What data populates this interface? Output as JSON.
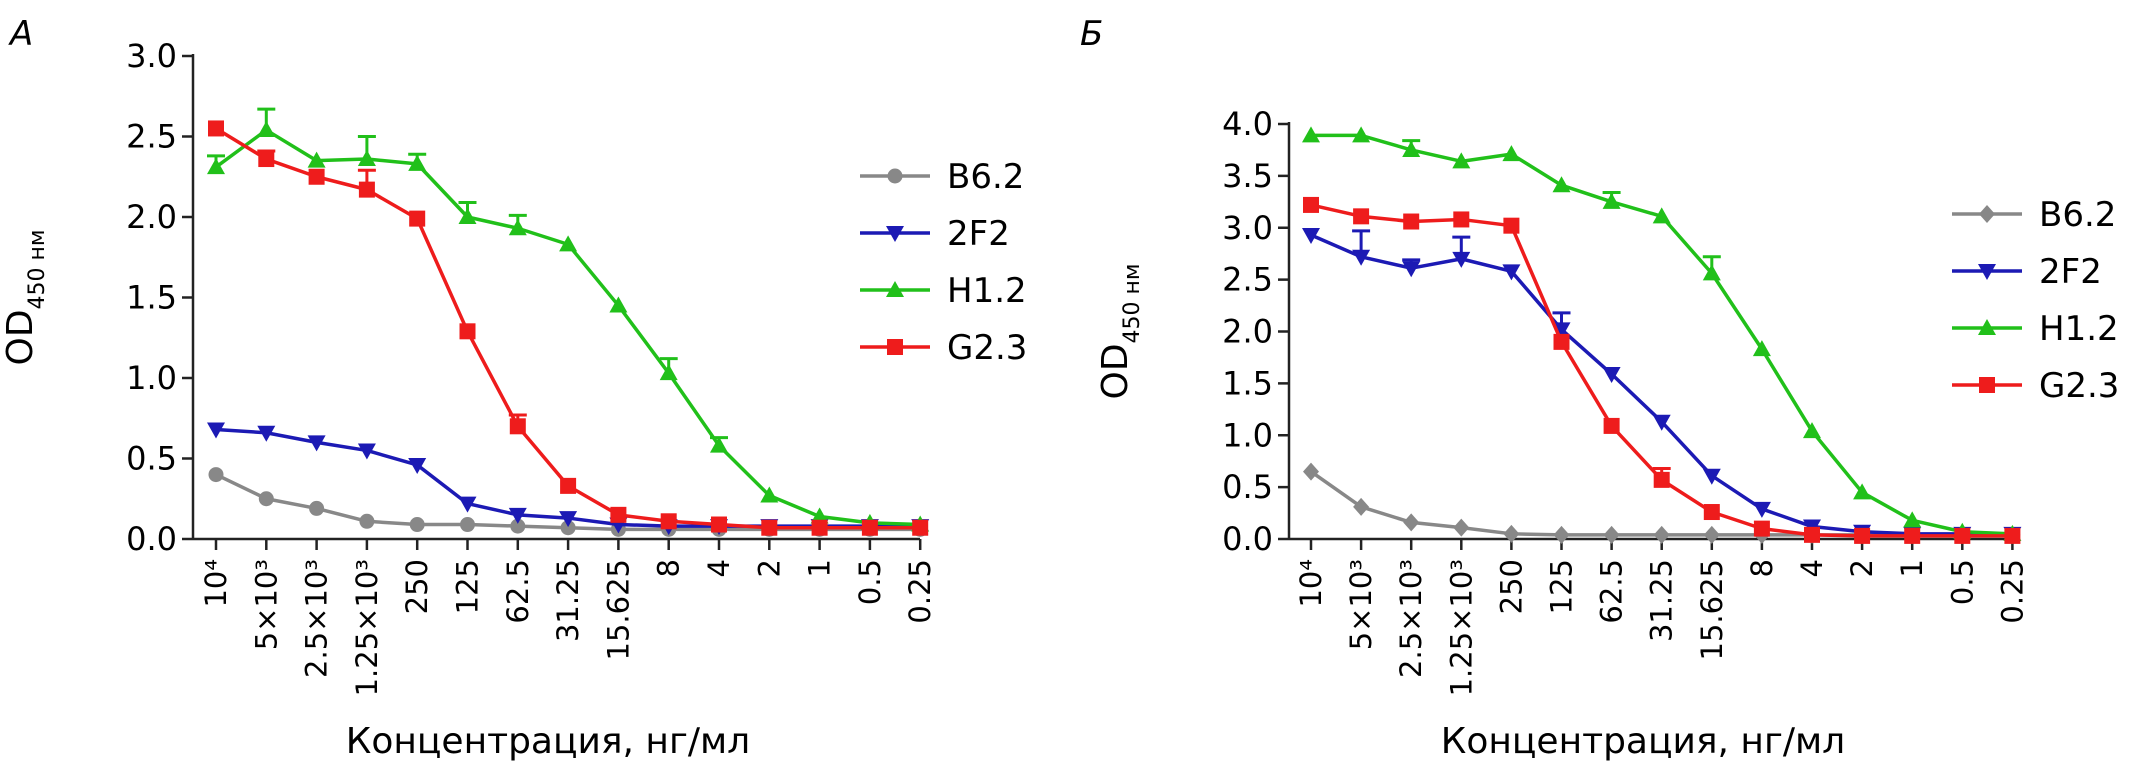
{
  "chart_data": [
    {
      "panel_label": "А",
      "type": "line",
      "categories": [
        "10⁴",
        "5×10³",
        "2.5×10³",
        "1.25×10³",
        "250",
        "125",
        "62.5",
        "31.25",
        "15.625",
        "8",
        "4",
        "2",
        "1",
        "0.5",
        "0.25"
      ],
      "xlabel": "Концентрация, нг/мл",
      "ylabel": "OD",
      "ylabel_sub": "450 нм",
      "ylim": [
        0,
        3.0
      ],
      "yticks": [
        "0.0",
        "0.5",
        "1.0",
        "1.5",
        "2.0",
        "2.5",
        "3.0"
      ],
      "legend_position": "right",
      "series": [
        {
          "name": "B6.2",
          "color": "#888888",
          "marker": "circle",
          "values": [
            0.4,
            0.25,
            0.19,
            0.11,
            0.09,
            0.09,
            0.08,
            0.07,
            0.06,
            0.06,
            0.06,
            0.06,
            0.06,
            0.06,
            0.06
          ],
          "err": [
            0,
            0,
            0,
            0,
            0,
            0,
            0,
            0,
            0,
            0,
            0,
            0,
            0,
            0,
            0
          ]
        },
        {
          "name": "2F2",
          "color": "#1c1ab4",
          "marker": "triangle-down",
          "values": [
            0.68,
            0.66,
            0.6,
            0.55,
            0.46,
            0.22,
            0.15,
            0.13,
            0.09,
            0.08,
            0.08,
            0.08,
            0.08,
            0.08,
            0.08
          ],
          "err": [
            0,
            0,
            0,
            0,
            0,
            0,
            0,
            0,
            0,
            0,
            0,
            0,
            0,
            0,
            0
          ]
        },
        {
          "name": "H1.2",
          "color": "#21c01a",
          "marker": "triangle-up",
          "values": [
            2.31,
            2.54,
            2.35,
            2.36,
            2.33,
            2.0,
            1.93,
            1.83,
            1.45,
            1.03,
            0.58,
            0.27,
            0.14,
            0.1,
            0.09
          ],
          "err": [
            0.07,
            0.13,
            0,
            0.14,
            0.06,
            0.09,
            0.08,
            0,
            0,
            0.09,
            0.05,
            0,
            0,
            0,
            0
          ]
        },
        {
          "name": "G2.3",
          "color": "#ee1c1c",
          "marker": "square",
          "values": [
            2.55,
            2.36,
            2.25,
            2.17,
            1.99,
            1.29,
            0.7,
            0.33,
            0.15,
            0.11,
            0.09,
            0.07,
            0.07,
            0.07,
            0.07
          ],
          "err": [
            0,
            0.05,
            0,
            0.12,
            0,
            0,
            0.07,
            0,
            0,
            0,
            0,
            0,
            0,
            0,
            0
          ]
        }
      ]
    },
    {
      "panel_label": "Б",
      "type": "line",
      "categories": [
        "10⁴",
        "5×10³",
        "2.5×10³",
        "1.25×10³",
        "250",
        "125",
        "62.5",
        "31.25",
        "15.625",
        "8",
        "4",
        "2",
        "1",
        "0.5",
        "0.25"
      ],
      "xlabel": "Концентрация, нг/мл",
      "ylabel": "OD",
      "ylabel_sub": "450 нм",
      "ylim": [
        0,
        4.0
      ],
      "yticks": [
        "0.0",
        "0.5",
        "1.0",
        "1.5",
        "2.0",
        "2.5",
        "3.0",
        "3.5",
        "4.0"
      ],
      "legend_position": "right",
      "series": [
        {
          "name": "B6.2",
          "color": "#888888",
          "marker": "diamond",
          "values": [
            0.65,
            0.31,
            0.16,
            0.11,
            0.05,
            0.04,
            0.04,
            0.04,
            0.04,
            0.04,
            0.04,
            0.04,
            0.04,
            0.04,
            0.04
          ],
          "err": [
            0,
            0,
            0,
            0,
            0,
            0,
            0,
            0,
            0,
            0,
            0,
            0,
            0,
            0,
            0
          ]
        },
        {
          "name": "2F2",
          "color": "#1c1ab4",
          "marker": "triangle-down",
          "values": [
            2.93,
            2.72,
            2.61,
            2.7,
            2.58,
            2.02,
            1.59,
            1.13,
            0.61,
            0.29,
            0.12,
            0.07,
            0.05,
            0.05,
            0.05
          ],
          "err": [
            0,
            0.25,
            0.08,
            0.21,
            0,
            0.16,
            0,
            0,
            0,
            0,
            0,
            0,
            0,
            0,
            0
          ]
        },
        {
          "name": "H1.2",
          "color": "#21c01a",
          "marker": "triangle-up",
          "values": [
            3.89,
            3.89,
            3.75,
            3.64,
            3.71,
            3.41,
            3.25,
            3.11,
            2.56,
            1.83,
            1.04,
            0.45,
            0.18,
            0.07,
            0.05
          ],
          "err": [
            0,
            0,
            0.09,
            0,
            0,
            0,
            0.09,
            0,
            0.16,
            0,
            0,
            0,
            0,
            0,
            0
          ]
        },
        {
          "name": "G2.3",
          "color": "#ee1c1c",
          "marker": "square",
          "values": [
            3.22,
            3.11,
            3.06,
            3.08,
            3.02,
            1.9,
            1.09,
            0.57,
            0.26,
            0.1,
            0.04,
            0.03,
            0.03,
            0.03,
            0.03
          ],
          "err": [
            0,
            0,
            0,
            0,
            0,
            0,
            0,
            0.11,
            0,
            0,
            0,
            0,
            0,
            0,
            0
          ]
        }
      ]
    }
  ]
}
